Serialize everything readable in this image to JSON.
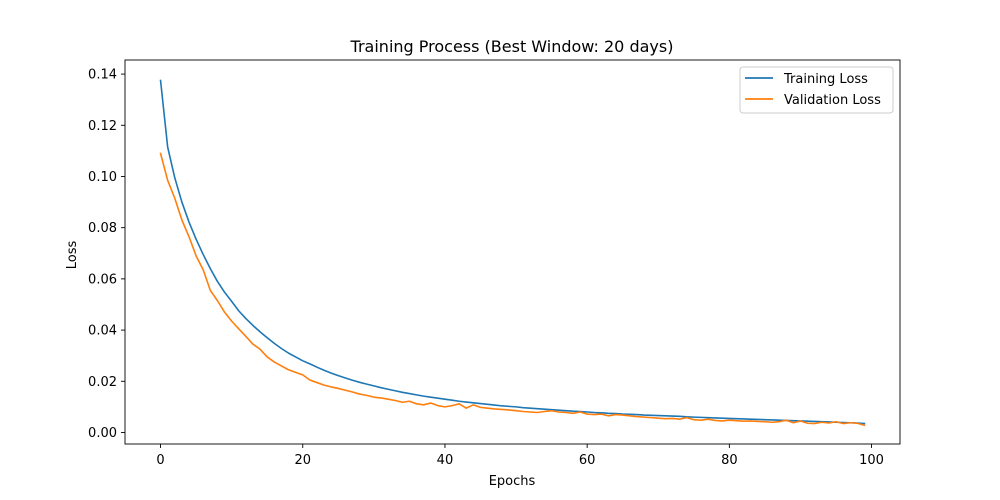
{
  "chart_data": {
    "type": "line",
    "title": "Training Process (Best Window: 20 days)",
    "xlabel": "Epochs",
    "ylabel": "Loss",
    "xlim": [
      -5,
      104
    ],
    "ylim": [
      -0.0045,
      0.1455
    ],
    "xticks": [
      0,
      20,
      40,
      60,
      80,
      100
    ],
    "yticks": [
      0.0,
      0.02,
      0.04,
      0.06,
      0.08,
      0.1,
      0.12,
      0.14
    ],
    "ytick_labels": [
      "0.00",
      "0.02",
      "0.04",
      "0.06",
      "0.08",
      "0.10",
      "0.12",
      "0.14"
    ],
    "grid": false,
    "legend_position": "top-right",
    "x": [
      0,
      1,
      2,
      3,
      4,
      5,
      6,
      7,
      8,
      9,
      10,
      11,
      12,
      13,
      14,
      15,
      16,
      17,
      18,
      19,
      20,
      21,
      22,
      23,
      24,
      25,
      26,
      27,
      28,
      29,
      30,
      31,
      32,
      33,
      34,
      35,
      36,
      37,
      38,
      39,
      40,
      41,
      42,
      43,
      44,
      45,
      46,
      47,
      48,
      49,
      50,
      51,
      52,
      53,
      54,
      55,
      56,
      57,
      58,
      59,
      60,
      61,
      62,
      63,
      64,
      65,
      66,
      67,
      68,
      69,
      70,
      71,
      72,
      73,
      74,
      75,
      76,
      77,
      78,
      79,
      80,
      81,
      82,
      83,
      84,
      85,
      86,
      87,
      88,
      89,
      90,
      91,
      92,
      93,
      94,
      95,
      96,
      97,
      98,
      99
    ],
    "series": [
      {
        "name": "Training Loss",
        "color": "#1f77b4",
        "values": [
          0.1375,
          0.1115,
          0.0995,
          0.09,
          0.0822,
          0.0755,
          0.0695,
          0.064,
          0.059,
          0.0548,
          0.0512,
          0.0475,
          0.0445,
          0.0418,
          0.0393,
          0.037,
          0.0348,
          0.0328,
          0.031,
          0.0295,
          0.028,
          0.0268,
          0.0255,
          0.0243,
          0.0232,
          0.0222,
          0.0213,
          0.0204,
          0.0196,
          0.0189,
          0.0182,
          0.0175,
          0.0169,
          0.0163,
          0.0157,
          0.0152,
          0.0147,
          0.0142,
          0.0138,
          0.0134,
          0.013,
          0.0126,
          0.0122,
          0.0119,
          0.0116,
          0.0113,
          0.011,
          0.0107,
          0.0104,
          0.0102,
          0.01,
          0.0097,
          0.0095,
          0.0093,
          0.0091,
          0.0089,
          0.0087,
          0.0085,
          0.0083,
          0.0082,
          0.008,
          0.0078,
          0.0077,
          0.0075,
          0.0074,
          0.0072,
          0.0071,
          0.007,
          0.0068,
          0.0067,
          0.0066,
          0.0065,
          0.0064,
          0.0063,
          0.0061,
          0.006,
          0.0059,
          0.0058,
          0.0057,
          0.0056,
          0.0055,
          0.0054,
          0.0053,
          0.0052,
          0.0051,
          0.005,
          0.0049,
          0.0048,
          0.0047,
          0.0046,
          0.0045,
          0.0044,
          0.0043,
          0.0042,
          0.0041,
          0.004,
          0.0039,
          0.0038,
          0.0037,
          0.0035
        ]
      },
      {
        "name": "Validation Loss",
        "color": "#ff7f0e",
        "values": [
          0.109,
          0.0985,
          0.0915,
          0.083,
          0.0765,
          0.069,
          0.0635,
          0.0555,
          0.0515,
          0.047,
          0.0435,
          0.0405,
          0.0375,
          0.0345,
          0.0325,
          0.0295,
          0.0275,
          0.026,
          0.0245,
          0.0235,
          0.0225,
          0.0205,
          0.0195,
          0.0185,
          0.0178,
          0.0172,
          0.0165,
          0.0158,
          0.015,
          0.0145,
          0.0138,
          0.0135,
          0.013,
          0.0125,
          0.0118,
          0.0122,
          0.0112,
          0.0108,
          0.0115,
          0.0105,
          0.01,
          0.0105,
          0.0112,
          0.0095,
          0.0108,
          0.0098,
          0.0095,
          0.0092,
          0.009,
          0.0088,
          0.0085,
          0.0082,
          0.008,
          0.0078,
          0.0082,
          0.0085,
          0.008,
          0.0078,
          0.0075,
          0.008,
          0.0072,
          0.007,
          0.0072,
          0.0065,
          0.007,
          0.0068,
          0.0065,
          0.0062,
          0.006,
          0.0058,
          0.0056,
          0.0054,
          0.0055,
          0.0052,
          0.0058,
          0.005,
          0.0048,
          0.0052,
          0.0047,
          0.0045,
          0.0048,
          0.0046,
          0.0044,
          0.0045,
          0.0043,
          0.0042,
          0.004,
          0.0042,
          0.0048,
          0.0038,
          0.0045,
          0.0036,
          0.0035,
          0.004,
          0.0037,
          0.0042,
          0.0035,
          0.0038,
          0.0036,
          0.0028
        ]
      }
    ]
  }
}
